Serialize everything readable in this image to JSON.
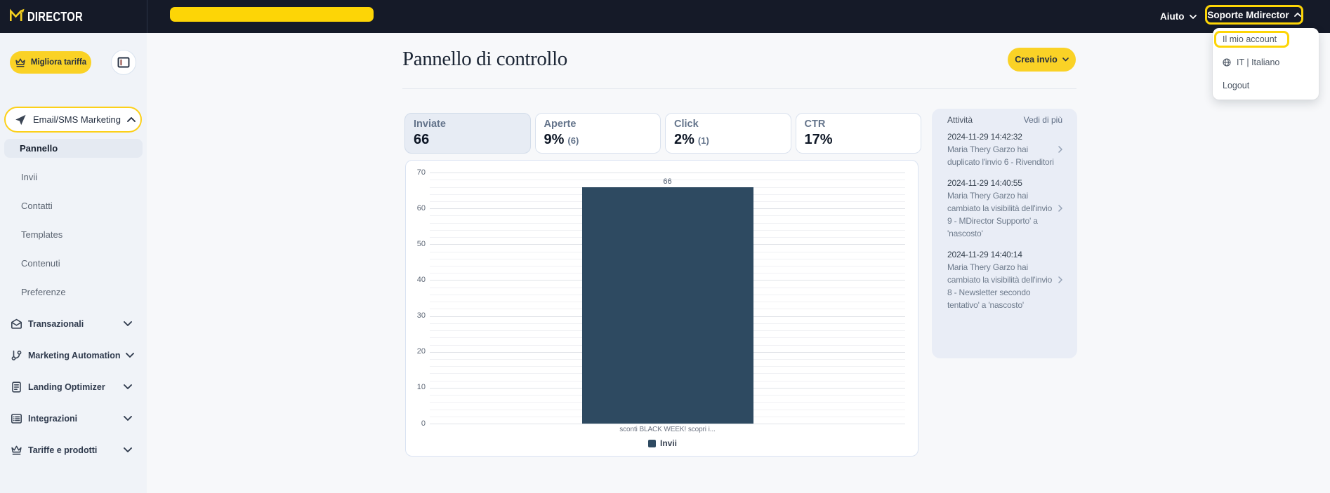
{
  "topbar": {
    "logo_text": "DIRECTOR",
    "help_label": "Aiuto",
    "account_label": "Soporte Mdirector"
  },
  "account_menu": {
    "items": [
      {
        "label": "Il mio account",
        "highlighted": true
      },
      {
        "label": "IT | Italiano",
        "icon": "globe"
      },
      {
        "label": "Logout"
      }
    ]
  },
  "sidebar": {
    "upgrade_label": "Migliora tariffa",
    "active_section_label": "Email/SMS Marketing",
    "subitems": [
      {
        "label": "Pannello",
        "active": true
      },
      {
        "label": "Invii"
      },
      {
        "label": "Contatti"
      },
      {
        "label": "Templates"
      },
      {
        "label": "Contenuti"
      },
      {
        "label": "Preferenze"
      }
    ],
    "sections": [
      {
        "label": "Transazionali",
        "icon": "mail"
      },
      {
        "label": "Marketing Automation",
        "icon": "branch"
      },
      {
        "label": "Landing Optimizer",
        "icon": "file"
      },
      {
        "label": "Integrazioni",
        "icon": "list"
      },
      {
        "label": "Tariffe e prodotti",
        "icon": "crown"
      }
    ]
  },
  "main": {
    "title": "Pannello di controllo",
    "create_button_label": "Crea invio",
    "stats": [
      {
        "label": "Inviate",
        "value": "66",
        "sub": "",
        "active": true
      },
      {
        "label": "Aperte",
        "value": "9%",
        "sub": "(6)"
      },
      {
        "label": "Click",
        "value": "2%",
        "sub": "(1)"
      },
      {
        "label": "CTR",
        "value": "17%",
        "sub": ""
      }
    ]
  },
  "chart_data": {
    "type": "bar",
    "categories": [
      "sconti BLACK WEEK! scopri i..."
    ],
    "series": [
      {
        "name": "Invii",
        "values": [
          66
        ]
      }
    ],
    "value_labels": [
      "66"
    ],
    "title": "",
    "xlabel": "",
    "ylabel": "",
    "ylim": [
      0,
      70
    ],
    "y_major_step": 10,
    "y_minor_step": 2,
    "grid": true,
    "legend_position": "bottom",
    "bar_color": "#2e4a61"
  },
  "activity": {
    "title": "Attività",
    "more_label": "Vedi di più",
    "entries": [
      {
        "timestamp": "2024-11-29 14:42:32",
        "text": "Maria Thery Garzo hai duplicato l'invio 6 - Rivenditori",
        "lines": [
          "Maria Thery Garzo hai",
          "duplicato l'invio 6 - Rivenditori"
        ]
      },
      {
        "timestamp": "2024-11-29 14:40:55",
        "text": "Maria Thery Garzo hai cambiato la visibilità dell'invio 9 - MDirector Supporto' a 'nascosto'",
        "lines": [
          "Maria Thery Garzo hai",
          "cambiato la visibilità dell'invio",
          "9 - MDirector Supporto' a",
          "'nascosto'"
        ]
      },
      {
        "timestamp": "2024-11-29 14:40:14",
        "text": "Maria Thery Garzo hai cambiato la visibilità dell'invio 8 - Newsletter secondo tentativo' a 'nascosto'",
        "lines": [
          "Maria Thery Garzo hai",
          "cambiato la visibilità dell'invio",
          "8 - Newsletter secondo",
          "tentativo' a 'nascosto'"
        ]
      }
    ]
  },
  "colors": {
    "brand_yellow": "#fad226",
    "annotation_yellow": "#fdd506",
    "topbar_bg": "#151a28",
    "sidebar_bg": "#f0f3f8",
    "bar_color": "#2e4a61",
    "panel_bg": "#e9edf6"
  }
}
